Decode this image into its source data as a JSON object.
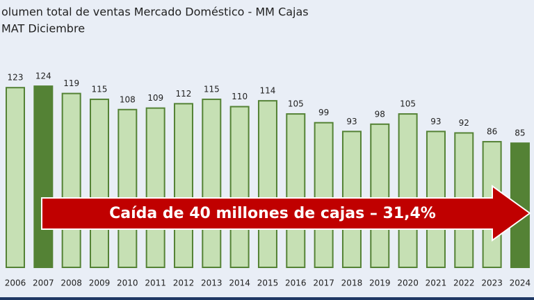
{
  "chart_data": {
    "type": "bar",
    "title": "olumen total de ventas Mercado Doméstico - MM Cajas",
    "subtitle": "MAT Diciembre",
    "categories": [
      "2006",
      "2007",
      "2008",
      "2009",
      "2010",
      "2011",
      "2012",
      "2013",
      "2014",
      "2015",
      "2016",
      "2017",
      "2018",
      "2019",
      "2020",
      "2021",
      "2022",
      "2023",
      "2024"
    ],
    "values": [
      123,
      124,
      119,
      115,
      108,
      109,
      112,
      115,
      110,
      114,
      105,
      99,
      93,
      98,
      105,
      93,
      92,
      86,
      85
    ],
    "colors": [
      "#c6e0b4",
      "#548235",
      "#c6e0b4",
      "#c6e0b4",
      "#c6e0b4",
      "#c6e0b4",
      "#c6e0b4",
      "#c6e0b4",
      "#c6e0b4",
      "#c6e0b4",
      "#c6e0b4",
      "#c6e0b4",
      "#c6e0b4",
      "#c6e0b4",
      "#c6e0b4",
      "#c6e0b4",
      "#c6e0b4",
      "#c6e0b4",
      "#548235"
    ],
    "border_color": "#548235",
    "ylim": [
      0,
      125
    ],
    "annotation": "Caída de 40 millones de cajas – 31,4%",
    "annotation_color": "#c00000"
  }
}
